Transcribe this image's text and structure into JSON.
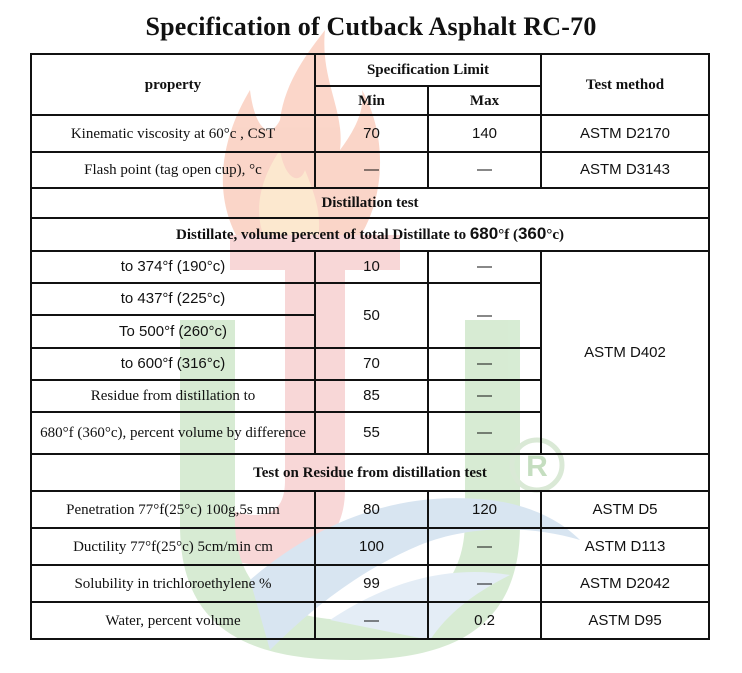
{
  "title": "Specification of Cutback Asphalt RC-70",
  "header": {
    "property": "property",
    "spec_limit": "Specification Limit",
    "min": "Min",
    "max": "Max",
    "test_method": "Test method"
  },
  "rows_top": [
    {
      "property": "Kinematic viscosity at 60°c , CST",
      "min": "70",
      "max": "140",
      "method": "ASTM D2170"
    },
    {
      "property": "Flash point (tag open cup), °c",
      "min": "—",
      "max": "—",
      "method": "ASTM D3143"
    }
  ],
  "distillation_section": "Distillation test",
  "distillate": {
    "prefix": "Distillate, volume percent of total Distillate to ",
    "temp_f": "680",
    "unit_f": "°f (",
    "temp_c": "360",
    "unit_c": "°c)"
  },
  "distillation_rows": [
    {
      "property": "to 374°f (190°c)",
      "min": "10",
      "max": "—"
    },
    {
      "property": "to 437°f (225°c)"
    },
    {
      "property": "To 500°f (260°c)"
    },
    {
      "property": "to 600°f (316°c)",
      "min": "70",
      "max": "—"
    },
    {
      "property": "Residue from distillation to",
      "min": "85",
      "max": "—"
    },
    {
      "property": "680°f (360°c), percent volume by difference",
      "min": "55",
      "max": "—"
    }
  ],
  "distillation_merged": {
    "min": "50",
    "max": "—"
  },
  "distillation_method": "ASTM D402",
  "residue_section": "Test on Residue from distillation test",
  "rows_bottom": [
    {
      "property": "Penetration 77°f(25°c) 100g,5s mm",
      "min": "80",
      "max": "120",
      "method": "ASTM D5"
    },
    {
      "property": "Ductility 77°f(25°c) 5cm/min cm",
      "min": "100",
      "max": "—",
      "method": "ASTM D113"
    },
    {
      "property": "Solubility in trichloroethylene %",
      "min": "99",
      "max": "—",
      "method": "ASTM D2042"
    },
    {
      "property": "Water, percent volume",
      "min": "—",
      "max": "0.2",
      "method": "ASTM D95"
    }
  ],
  "watermark": {
    "registered_mark": "R",
    "icon": "flame-logo-watermark"
  }
}
